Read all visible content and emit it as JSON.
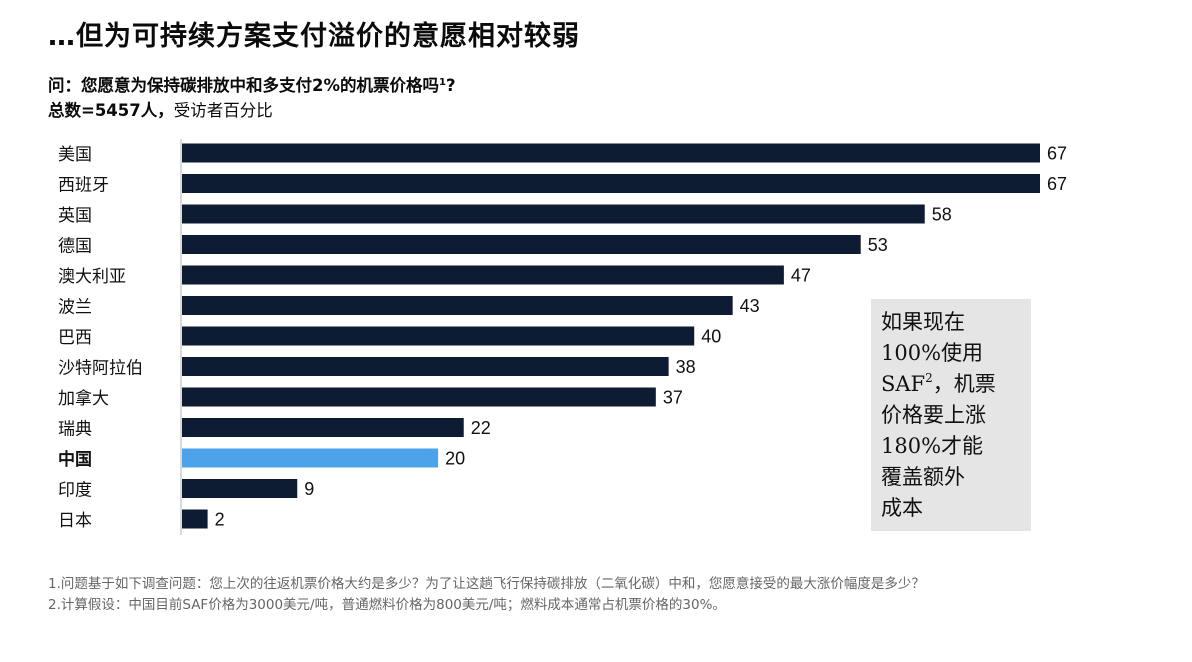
{
  "title": "…但为可持续方案支付溢价的意愿相对较弱",
  "question": {
    "text": "问：您愿意为保持碳排放中和多支付2%的机票价格吗",
    "sup": "1",
    "end": "?"
  },
  "total": {
    "bold": "总数=5457人，",
    "rest": "受访者百分比"
  },
  "callout": {
    "line1": "如果现在",
    "line2": "100%使用",
    "line3a": "SAF",
    "line3sup": "2",
    "line3b": "，机票",
    "line4": "价格要上涨",
    "line5": "180%才能",
    "line6": "覆盖额外",
    "line7": "成本"
  },
  "footnotes": {
    "f1": "1.问题基于如下调查问题：您上次的往返机票价格大约是多少？为了让这趟飞行保持碳排放（二氧化碳）中和，您愿意接受的最大涨价幅度是多少？",
    "f2": "2.计算假设：中国目前SAF价格为3000美元/吨，普通燃料价格为800美元/吨；燃料成本通常占机票价格的30%。"
  },
  "colors": {
    "bar": "#0d1b33",
    "highlight": "#4da3ea"
  },
  "chart_data": {
    "type": "bar",
    "orientation": "horizontal",
    "categories": [
      "美国",
      "西班牙",
      "英国",
      "德国",
      "澳大利亚",
      "波兰",
      "巴西",
      "沙特阿拉伯",
      "加拿大",
      "瑞典",
      "中国",
      "印度",
      "日本"
    ],
    "values": [
      67,
      67,
      58,
      53,
      47,
      43,
      40,
      38,
      37,
      22,
      20,
      9,
      2
    ],
    "highlight": "中国",
    "grid": false,
    "legend": "none"
  }
}
